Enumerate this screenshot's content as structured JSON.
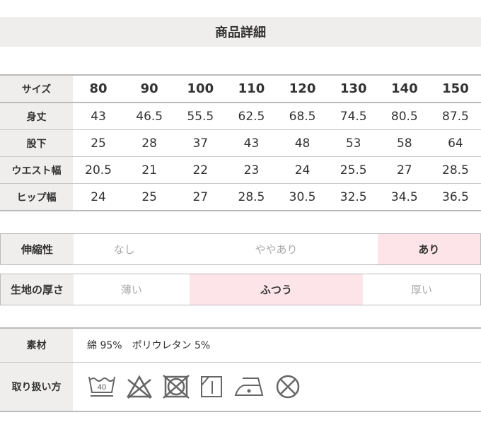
{
  "title": "商品詳細",
  "size_table": {
    "header_label": "サイズ",
    "sizes": [
      "80",
      "90",
      "100",
      "110",
      "120",
      "130",
      "140",
      "150"
    ],
    "rows": [
      {
        "label": "身丈",
        "values": [
          "43",
          "46.5",
          "55.5",
          "62.5",
          "68.5",
          "74.5",
          "80.5",
          "87.5"
        ]
      },
      {
        "label": "股下",
        "values": [
          "25",
          "28",
          "37",
          "43",
          "48",
          "53",
          "58",
          "64"
        ]
      },
      {
        "label": "ウエスト幅",
        "values": [
          "20.5",
          "21",
          "22",
          "23",
          "24",
          "25.5",
          "27",
          "28.5"
        ]
      },
      {
        "label": "ヒップ幅",
        "values": [
          "24",
          "25",
          "27",
          "28.5",
          "30.5",
          "32.5",
          "34.5",
          "36.5"
        ]
      }
    ]
  },
  "stretch": {
    "label": "伸縮性",
    "options": [
      "なし",
      "ややあり",
      "あり"
    ],
    "selected": 2
  },
  "thickness": {
    "label": "生地の厚さ",
    "options": [
      "薄い",
      "ふつう",
      "厚い"
    ],
    "selected": 1
  },
  "material": {
    "label": "素材",
    "value": "綿 95%　ポリウレタン 5%"
  },
  "care": {
    "label": "取り扱い方",
    "wash_temp": "40",
    "icons": [
      "wash-40-icon",
      "no-bleach-icon",
      "no-tumble-dry-icon",
      "shade-line-dry-icon",
      "iron-low-icon",
      "no-dry-clean-icon"
    ]
  },
  "colors": {
    "label_bg": "#efeeec",
    "selected_bg": "#fce4e9"
  }
}
